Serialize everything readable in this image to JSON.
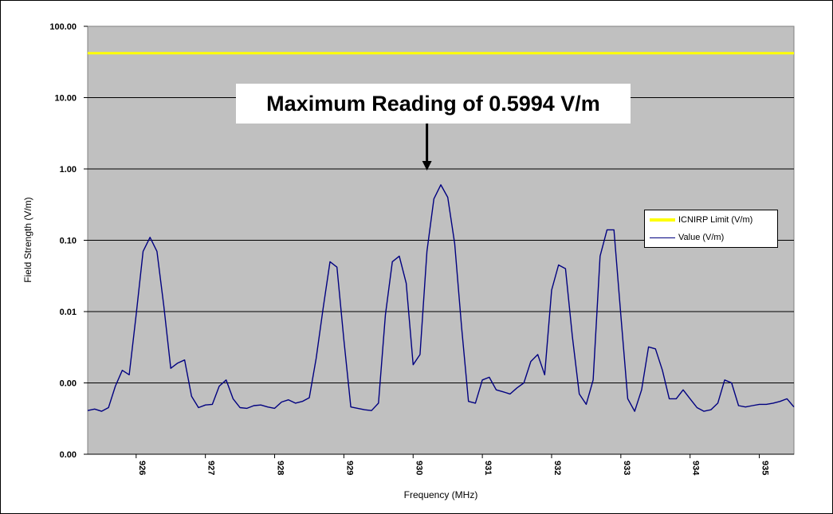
{
  "chart_data": {
    "type": "line",
    "title": "",
    "xlabel": "Frequency (MHz)",
    "ylabel": "Field Strength (V/m)",
    "y_scale": "log",
    "ylim": [
      0.0001,
      100
    ],
    "xlim": [
      925.3,
      935.5
    ],
    "x_ticks": [
      926,
      927,
      928,
      929,
      930,
      931,
      932,
      933,
      934,
      935
    ],
    "x_tick_labels": [
      "926",
      "927",
      "928",
      "929",
      "930",
      "931",
      "932",
      "933",
      "934",
      "935"
    ],
    "y_ticks": [
      0.0001,
      0.001,
      0.01,
      0.1,
      1,
      10,
      100
    ],
    "y_tick_labels": [
      "0.00",
      "0.00",
      "0.01",
      "0.10",
      "1.00",
      "10.00",
      "100.00"
    ],
    "grid": true,
    "plot_background": "#c0c0c0",
    "legend_placement": "right",
    "series": [
      {
        "name": "ICNIRP Limit (V/m)",
        "color": "#ffff00",
        "x": [
          925.3,
          935.5
        ],
        "y": [
          41.9,
          41.9
        ]
      },
      {
        "name": "Value (V/m)",
        "color": "#000080",
        "x": [
          925.3,
          925.4,
          925.5,
          925.6,
          925.7,
          925.8,
          925.9,
          926.0,
          926.1,
          926.2,
          926.3,
          926.4,
          926.5,
          926.6,
          926.7,
          926.8,
          926.9,
          927.0,
          927.1,
          927.2,
          927.3,
          927.4,
          927.5,
          927.6,
          927.7,
          927.8,
          927.9,
          928.0,
          928.1,
          928.2,
          928.3,
          928.4,
          928.5,
          928.6,
          928.7,
          928.8,
          928.9,
          929.0,
          929.1,
          929.2,
          929.3,
          929.4,
          929.5,
          929.6,
          929.7,
          929.8,
          929.9,
          930.0,
          930.1,
          930.2,
          930.3,
          930.4,
          930.5,
          930.6,
          930.7,
          930.8,
          930.9,
          931.0,
          931.1,
          931.2,
          931.3,
          931.4,
          931.5,
          931.6,
          931.7,
          931.8,
          931.9,
          932.0,
          932.1,
          932.2,
          932.3,
          932.4,
          932.5,
          932.6,
          932.7,
          932.8,
          932.9,
          933.0,
          933.1,
          933.2,
          933.3,
          933.4,
          933.5,
          933.6,
          933.7,
          933.8,
          933.9,
          934.0,
          934.1,
          934.2,
          934.3,
          934.4,
          934.5,
          934.6,
          934.7,
          934.8,
          934.9,
          935.0,
          935.1,
          935.2,
          935.3,
          935.4,
          935.5
        ],
        "y": [
          0.00041,
          0.00043,
          0.0004,
          0.00045,
          0.0009,
          0.0015,
          0.0013,
          0.009,
          0.07,
          0.11,
          0.07,
          0.012,
          0.0016,
          0.0019,
          0.0021,
          0.00065,
          0.00045,
          0.00049,
          0.0005,
          0.0009,
          0.0011,
          0.0006,
          0.00045,
          0.00044,
          0.00048,
          0.00049,
          0.00046,
          0.00044,
          0.00054,
          0.00058,
          0.00052,
          0.00055,
          0.00062,
          0.0022,
          0.011,
          0.05,
          0.042,
          0.004,
          0.00046,
          0.00044,
          0.00042,
          0.00041,
          0.00052,
          0.009,
          0.05,
          0.06,
          0.025,
          0.0018,
          0.0025,
          0.07,
          0.38,
          0.5994,
          0.4,
          0.09,
          0.006,
          0.00055,
          0.00052,
          0.0011,
          0.0012,
          0.0008,
          0.00075,
          0.0007,
          0.00085,
          0.001,
          0.002,
          0.0025,
          0.0013,
          0.02,
          0.045,
          0.04,
          0.0045,
          0.0007,
          0.0005,
          0.0011,
          0.06,
          0.14,
          0.14,
          0.009,
          0.0006,
          0.0004,
          0.0008,
          0.0032,
          0.003,
          0.0015,
          0.0006,
          0.0006,
          0.0008,
          0.0006,
          0.00045,
          0.0004,
          0.00042,
          0.00052,
          0.0011,
          0.001,
          0.00048,
          0.00046,
          0.00048,
          0.0005,
          0.0005,
          0.00052,
          0.00055,
          0.0006,
          0.00046
        ]
      }
    ],
    "annotation": {
      "text": "Maximum Reading of 0.5994 V/m",
      "x": 930.2,
      "y": 0.95
    }
  }
}
